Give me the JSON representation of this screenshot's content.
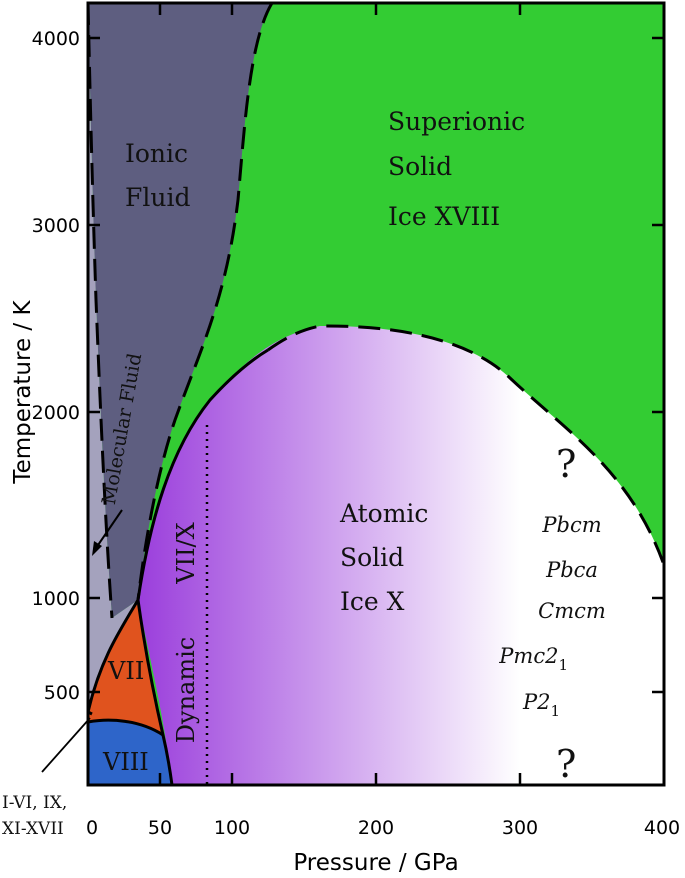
{
  "x_axis": {
    "title": "Pressure / GPa",
    "ticks": [
      "0",
      "50",
      "100",
      "200",
      "300",
      "400"
    ],
    "range": [
      0,
      400
    ]
  },
  "y_axis": {
    "title": "Temperature / K",
    "ticks": [
      "500",
      "1000",
      "2000",
      "3000",
      "4000"
    ],
    "range": [
      0,
      4200
    ]
  },
  "colors": {
    "molecular_fluid": "#a4a2bd",
    "ionic_fluid": "#5e5e80",
    "superionic": "#33cc33",
    "atomic_solid_start": "#9b3fdc",
    "atomic_solid_end": "#ffffff",
    "ice_vii": "#e0531e",
    "ice_viii": "#2e65c9"
  },
  "regions": {
    "ionic_fluid": [
      "Ionic",
      "Fluid"
    ],
    "superionic": [
      "Superionic",
      "Solid",
      "Ice XVIII"
    ],
    "molecular_fluid": "Molecular Fluid",
    "atomic_solid": [
      "Atomic",
      "Solid",
      "Ice X"
    ],
    "dynamic": "Dynamic",
    "vii_x": "VII/X",
    "vii": "VII",
    "viii": "VIII",
    "low_ices": [
      "I-VI, IX,",
      "XI-XVII"
    ]
  },
  "space_groups": [
    "Pbcm",
    "Pbca",
    "Cmcm",
    "Pmc2",
    "P2"
  ],
  "space_group_subscripts": [
    "",
    "",
    "",
    "1",
    "1"
  ],
  "unknown_marks": [
    "?",
    "?"
  ]
}
